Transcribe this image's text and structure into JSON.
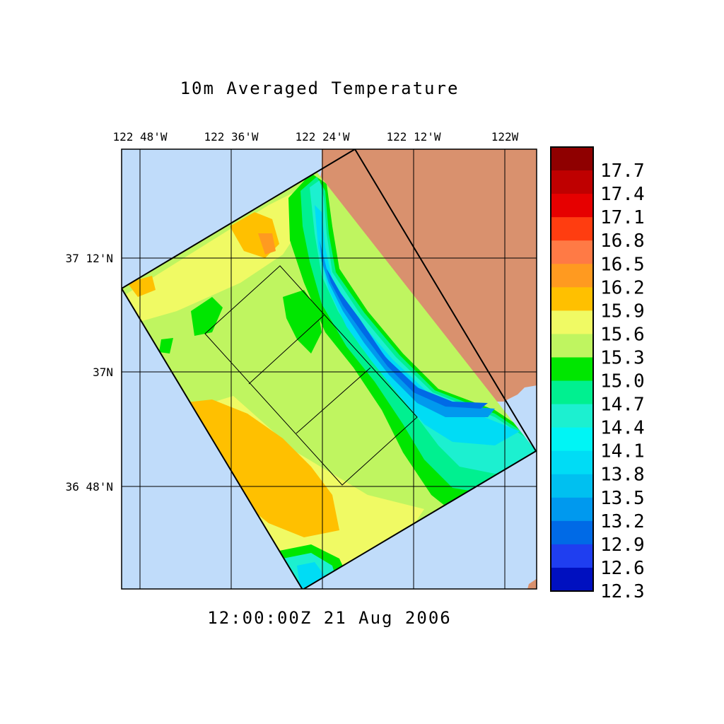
{
  "title": "10m Averaged Temperature",
  "timestamp": "12:00:00Z  21 Aug 2006",
  "lon_labels": [
    "122 48'W",
    "122 36'W",
    "122 24'W",
    "122 12'W",
    "122W"
  ],
  "lat_labels": [
    "37 12'N",
    "37N",
    "36 48'N"
  ],
  "colorbar": {
    "labels": [
      "17.7",
      "17.4",
      "17.1",
      "16.8",
      "16.5",
      "16.2",
      "15.9",
      "15.6",
      "15.3",
      "15.0",
      "14.7",
      "14.4",
      "14.1",
      "13.8",
      "13.5",
      "13.2",
      "12.9",
      "12.6",
      "12.3"
    ],
    "colors": [
      "#8f0000",
      "#bf0000",
      "#e60000",
      "#ff3d10",
      "#ff7a45",
      "#ff9a20",
      "#ffc000",
      "#f0fa64",
      "#bff560",
      "#00e600",
      "#00f090",
      "#1cf0d0",
      "#00f5f5",
      "#00dcf5",
      "#00c0f0",
      "#0099ee",
      "#006ae6",
      "#1f3ef0",
      "#0010c0"
    ]
  },
  "colors": {
    "ocean": "#c0dcfa",
    "land": "#d9916e"
  }
}
